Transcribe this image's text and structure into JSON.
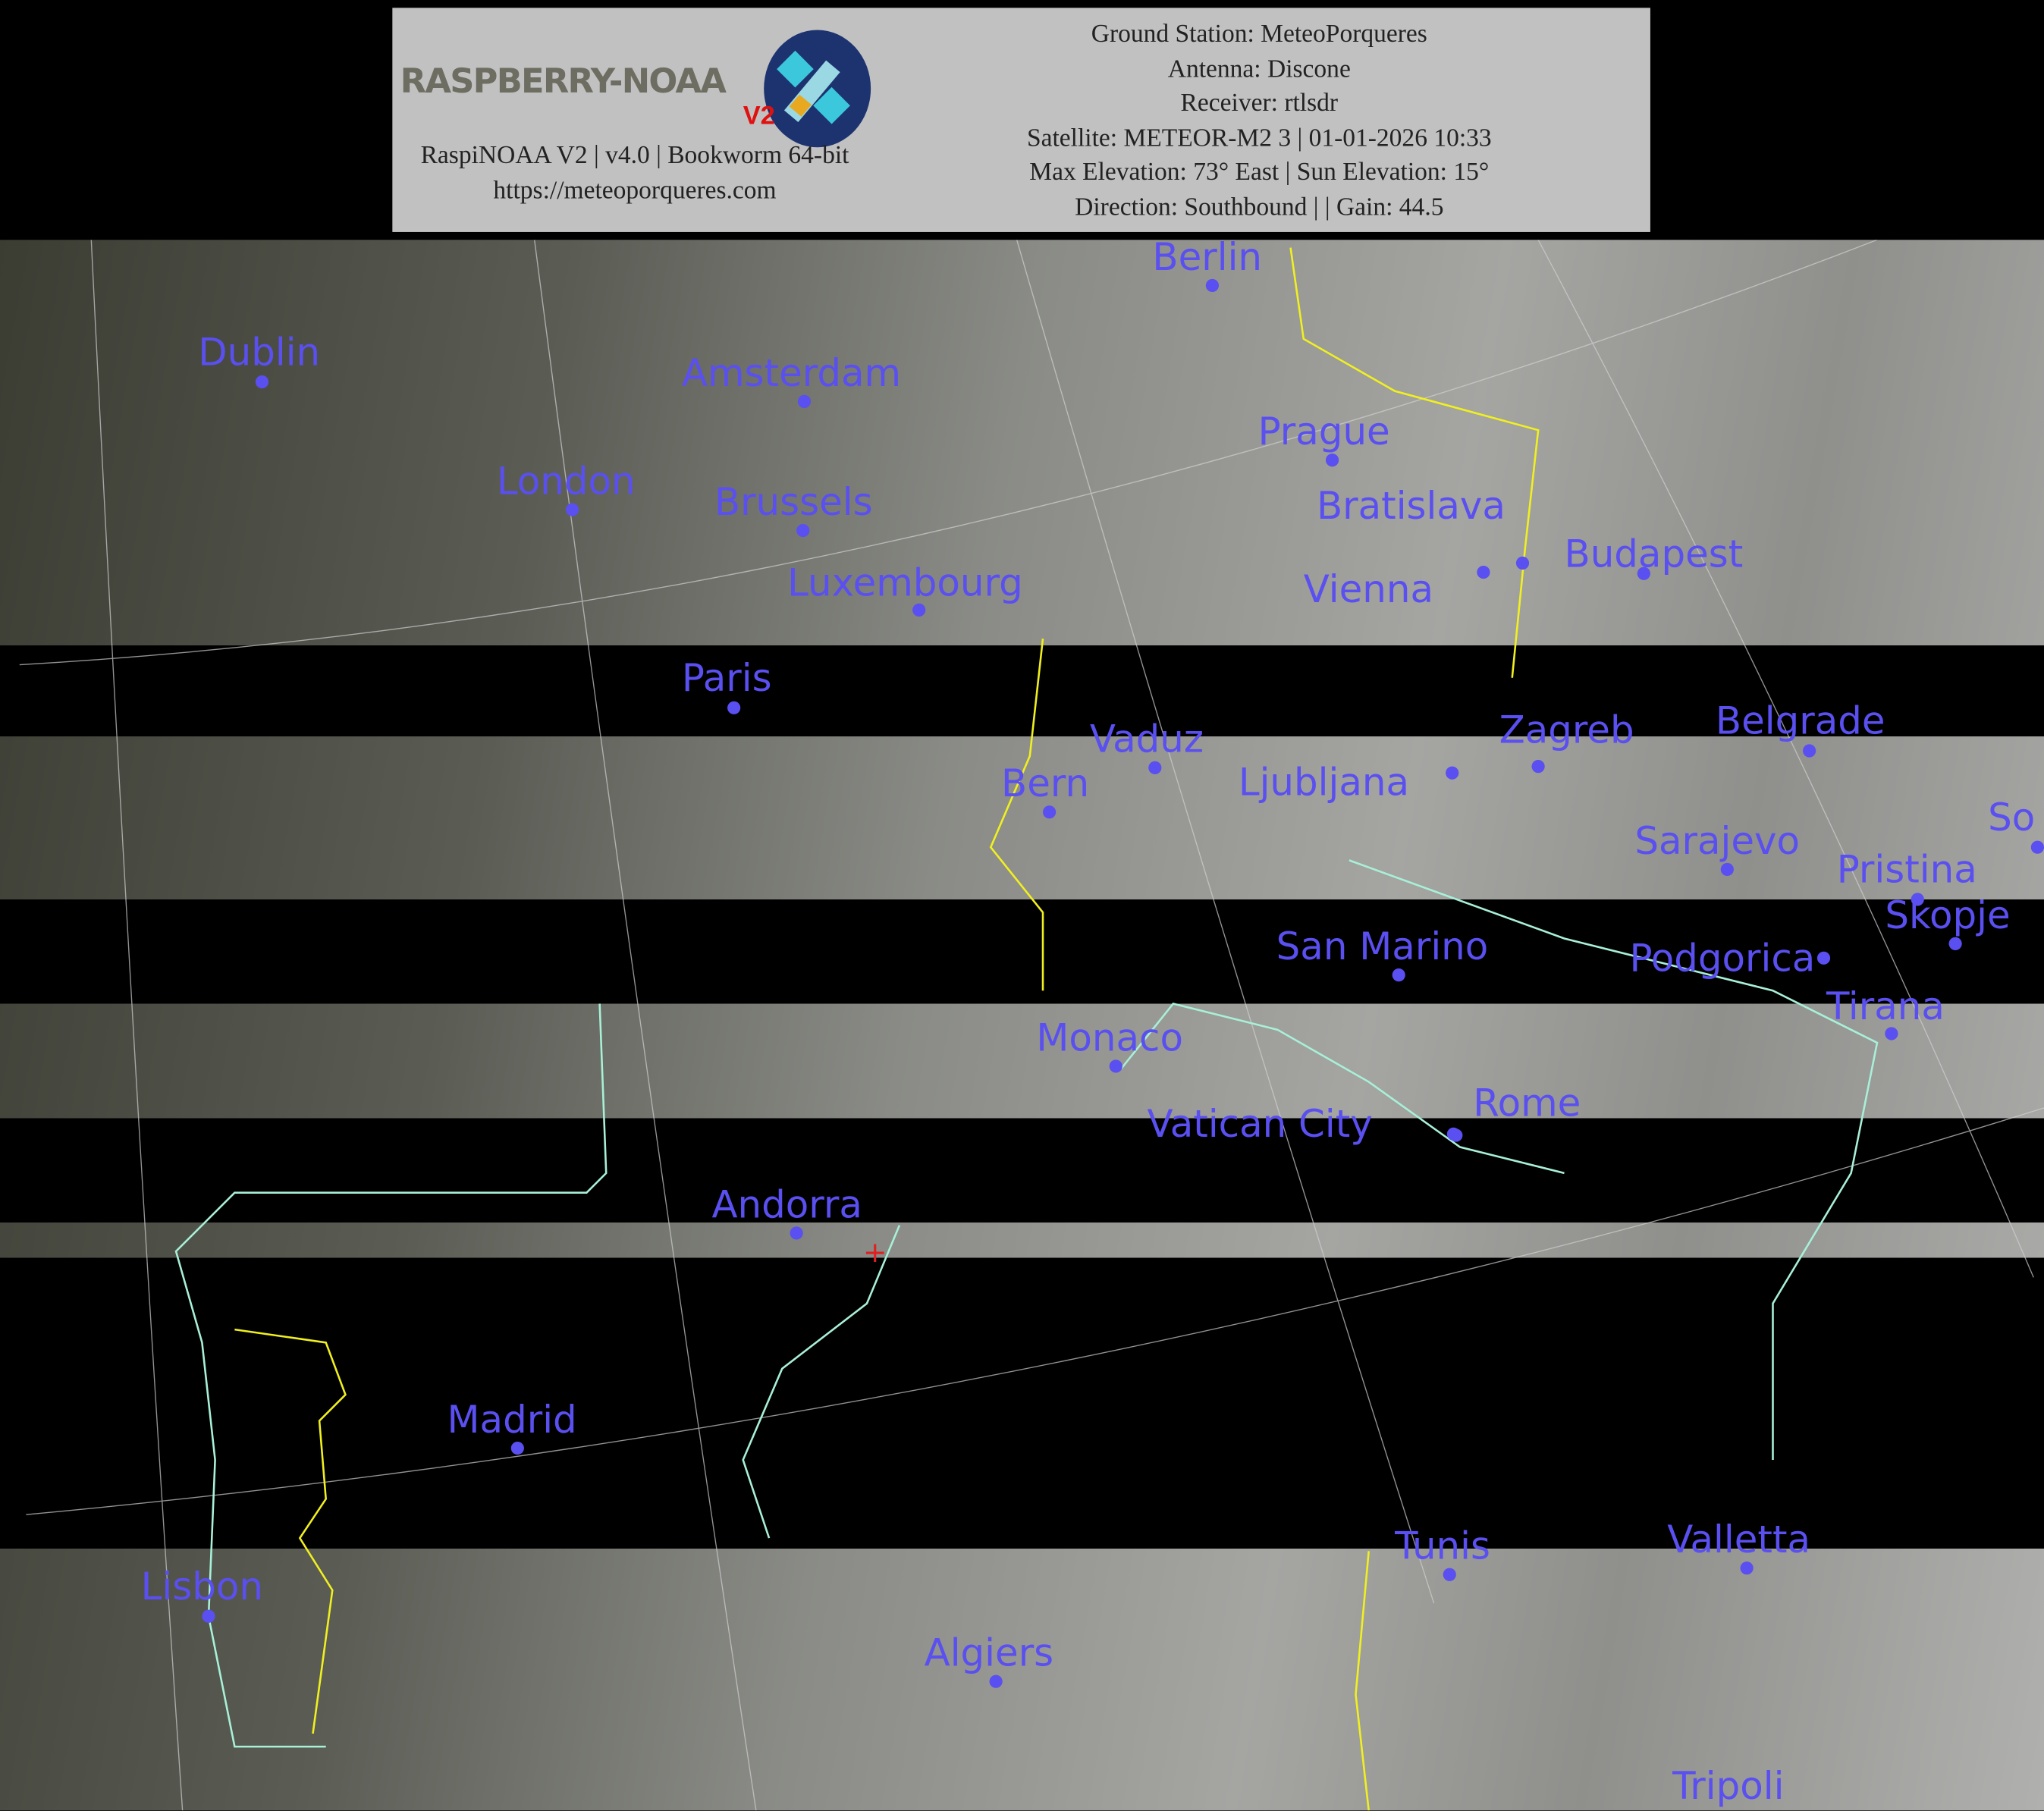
{
  "header": {
    "logo_text": "RASPBERRY-NOAA",
    "logo_version": "V2",
    "software_line": "RaspiNOAA V2 | v4.0 | Bookworm 64-bit",
    "website": "https://meteoporqueres.com",
    "info_lines": [
      "Ground Station: MeteoPorqueres",
      "Antenna: Discone",
      "Receiver: rtlsdr",
      "Satellite: METEOR-M2 3 | 01-01-2026 10:33",
      "Max Elevation: 73° East | Sun Elevation: 15°",
      "Direction: Southbound | | Gain: 44.5"
    ]
  },
  "map": {
    "label_color": "#5a4ff0",
    "coastline_color": "#a8f0d8",
    "border_color": "#f0f020",
    "marker": "red-cross-ground-station",
    "cities": [
      "Berlin",
      "Dublin",
      "Amsterdam",
      "London",
      "Prague",
      "Brussels",
      "Bratislava",
      "Vienna",
      "Budapest",
      "Luxembourg",
      "Paris",
      "Vaduz",
      "Ljubljana",
      "Zagreb",
      "Belgrade",
      "Bern",
      "So",
      "Sarajevo",
      "Pristina",
      "Skopje",
      "Podgorica",
      "San Marino",
      "Tirana",
      "Monaco",
      "Vatican City",
      "Rome",
      "Andorra",
      "Madrid",
      "Lisbon",
      "Tunis",
      "Valletta",
      "Algiers",
      "Tripoli"
    ]
  }
}
